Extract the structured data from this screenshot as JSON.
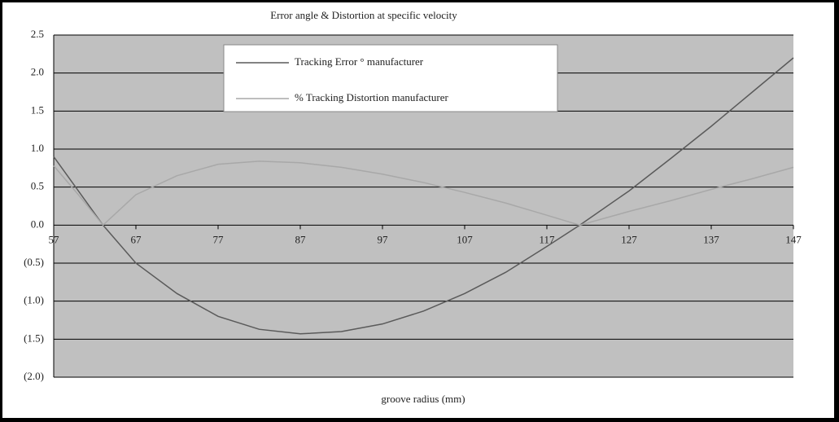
{
  "chart_data": {
    "type": "line",
    "title": "Error angle & Distortion at specific velocity",
    "x_label": "groove radius (mm)",
    "x": [
      57,
      60,
      63,
      67,
      72,
      77,
      82,
      87,
      92,
      97,
      102,
      107,
      112,
      117,
      121,
      127,
      132,
      137,
      142,
      147
    ],
    "series": [
      {
        "name": "Tracking Error ° manufacturer",
        "color": "#5a5a5a",
        "values": [
          0.9,
          0.45,
          0.0,
          -0.5,
          -0.9,
          -1.2,
          -1.37,
          -1.43,
          -1.4,
          -1.3,
          -1.13,
          -0.9,
          -0.62,
          -0.28,
          0.0,
          0.45,
          0.87,
          1.3,
          1.75,
          2.2
        ]
      },
      {
        "name": "% Tracking Distortion manufacturer",
        "color": "#a8a8a8",
        "values": [
          0.78,
          0.4,
          0.0,
          0.4,
          0.65,
          0.8,
          0.84,
          0.82,
          0.76,
          0.67,
          0.56,
          0.43,
          0.29,
          0.13,
          0.0,
          0.18,
          0.32,
          0.47,
          0.61,
          0.76
        ]
      }
    ],
    "xlim": [
      57,
      147
    ],
    "xticks": [
      57,
      67,
      77,
      87,
      97,
      107,
      117,
      127,
      137,
      147
    ],
    "ylim": [
      -2.0,
      2.5
    ],
    "yticks": [
      {
        "value": -2.0,
        "label": "(2.0)"
      },
      {
        "value": -1.5,
        "label": "(1.5)"
      },
      {
        "value": -1.0,
        "label": "(1.0)"
      },
      {
        "value": -0.5,
        "label": "(0.5)"
      },
      {
        "value": 0.0,
        "label": "0.0"
      },
      {
        "value": 0.5,
        "label": "0.5"
      },
      {
        "value": 1.0,
        "label": "1.0"
      },
      {
        "value": 1.5,
        "label": "1.5"
      },
      {
        "value": 2.0,
        "label": "2.0"
      },
      {
        "value": 2.5,
        "label": "2.5"
      }
    ],
    "grid": true,
    "legend": "top"
  }
}
